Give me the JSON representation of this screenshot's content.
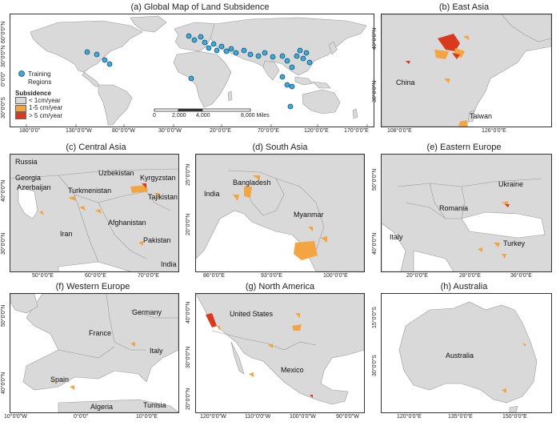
{
  "colors": {
    "land": "#d9d9d9",
    "border": "#9a9a9a",
    "low": "#d9d9d9",
    "mid": "#f2a541",
    "high": "#d93a1e",
    "dot": "#3fa9d8"
  },
  "panels": {
    "a": {
      "title": "(a) Global Map of Land Subsidence",
      "xticks": [
        "180°0'0\"",
        "130°0'0\"W",
        "80°0'0\"W",
        "30°0'0\"W",
        "20°0'0\"E",
        "70°0'0\"E",
        "120°0'0\"E",
        "170°0'0\"E"
      ],
      "yticks": [
        "60°0'0\"N",
        "30°0'0\"N",
        "0°0'0\"",
        "30°0'0\"S"
      ],
      "legend": {
        "training": "Training Regions",
        "subsidence_title": "Subsidence",
        "classes": [
          "< 1cm/year",
          "1-5 cm/year",
          "> 5 cm/year"
        ]
      },
      "scalebar": [
        "0",
        "2,000",
        "4,000",
        "8,000 Miles"
      ]
    },
    "b": {
      "title": "(b) East Asia",
      "labels": [
        "China",
        "Taiwan"
      ],
      "xticks": [
        "108°0'0\"E",
        "126°0'0\"E"
      ],
      "yticks": [
        "40°0'0\"N",
        "30°0'0\"N"
      ]
    },
    "c": {
      "title": "(c) Central Asia",
      "labels": [
        "Russia",
        "Georgia",
        "Azerbaijan",
        "Uzbekistan",
        "Kyrgyzstan",
        "Turkmenistan",
        "Tajikistan",
        "Afghanistan",
        "Iran",
        "Pakistan",
        "India"
      ],
      "xticks": [
        "50°0'0\"E",
        "60°0'0\"E",
        "70°0'0\"E"
      ],
      "yticks": [
        "40°0'0\"N",
        "30°0'0\"N"
      ]
    },
    "d": {
      "title": "(d) South Asia",
      "labels": [
        "Bangladesh",
        "India",
        "Myanmar"
      ],
      "xticks": [
        "86°0'0\"E",
        "93°0'0\"E",
        "100°0'0\"E"
      ],
      "yticks": [
        "25°0'0\"N",
        "20°0'0\"N"
      ]
    },
    "e": {
      "title": "(e) Eastern Europe",
      "labels": [
        "Ukraine",
        "Romania",
        "Italy",
        "Turkey"
      ],
      "xticks": [
        "20°0'0\"E",
        "28°0'0\"E",
        "36°0'0\"E"
      ],
      "yticks": [
        "50°0'0\"N",
        "40°0'0\"N"
      ]
    },
    "f": {
      "title": "(f) Western Europe",
      "labels": [
        "Germany",
        "France",
        "Italy",
        "Spain",
        "Algeria",
        "Tunisia"
      ],
      "xticks": [
        "10°0'0\"W",
        "0°0'0\"",
        "10°0'0\"E"
      ],
      "yticks": [
        "50°0'0\"N",
        "40°0'0\"N"
      ]
    },
    "g": {
      "title": "(g) North America",
      "labels": [
        "United States",
        "Mexico"
      ],
      "xticks": [
        "120°0'0\"W",
        "110°0'0\"W",
        "100°0'0\"W",
        "90°0'0\"W"
      ],
      "yticks": [
        "40°0'0\"N",
        "30°0'0\"N",
        "20°0'0\"N"
      ]
    },
    "h": {
      "title": "(h) Australia",
      "labels": [
        "Australia"
      ],
      "xticks": [
        "120°0'0\"E",
        "135°0'0\"E",
        "150°0'0\"E"
      ],
      "yticks": [
        "15°0'0\"S",
        "30°0'0\"S"
      ]
    }
  }
}
